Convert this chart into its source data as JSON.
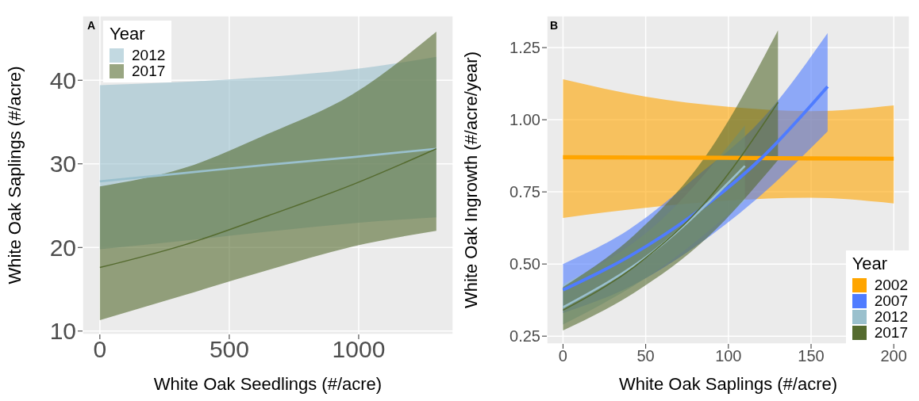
{
  "chart_data": [
    {
      "type": "line",
      "title": "A",
      "xlabel": "White Oak Seedlings (#/acre)",
      "ylabel": "White Oak Saplings (#/acre)",
      "legend_title": "Year",
      "legend": "top left",
      "grid": true,
      "xlim": [
        -67,
        1365
      ],
      "ylim": [
        9.6,
        47.7
      ],
      "xticks": [
        0,
        500,
        1000
      ],
      "yticks": [
        10,
        20,
        30,
        40
      ],
      "series": [
        {
          "name": "2012",
          "color": "#9ac0cd",
          "x": [
            0,
            325,
            650,
            975,
            1300
          ],
          "values": [
            27.9,
            28.9,
            29.9,
            30.8,
            31.8
          ],
          "lower": [
            19.8,
            20.8,
            21.9,
            22.9,
            23.6
          ],
          "upper": [
            39.4,
            39.8,
            40.4,
            41.3,
            42.8
          ]
        },
        {
          "name": "2017",
          "color": "#556b2f",
          "x": [
            0,
            325,
            650,
            975,
            1300
          ],
          "values": [
            17.6,
            20.3,
            23.8,
            27.5,
            31.8
          ],
          "lower": [
            11.3,
            14.3,
            17.3,
            20.1,
            22.0
          ],
          "upper": [
            27.3,
            29.5,
            33.6,
            38.3,
            45.8
          ]
        }
      ]
    },
    {
      "type": "line",
      "title": "B",
      "xlabel": "White Oak Saplings (#/acre)",
      "ylabel": "White Oak Ingrowth (#/acre/year)",
      "legend_title": "Year",
      "legend": "bottom right",
      "grid": true,
      "xlim": [
        -9.8,
        209.5
      ],
      "ylim": [
        0.223,
        1.36
      ],
      "xticks": [
        0,
        50,
        100,
        150,
        200
      ],
      "yticks": [
        {
          "value": 0.25,
          "label": "0.25"
        },
        {
          "value": 0.5,
          "label": "0.50"
        },
        {
          "value": 0.75,
          "label": "0.75"
        },
        {
          "value": 1,
          "label": "1.00"
        },
        {
          "value": 1.25,
          "label": "1.25"
        }
      ],
      "series": [
        {
          "name": "2002",
          "color": "#ffa500",
          "x": [
            0,
            50,
            100,
            150,
            200
          ],
          "values": [
            0.87,
            0.869,
            0.868,
            0.866,
            0.865
          ],
          "lower": [
            0.66,
            0.695,
            0.72,
            0.73,
            0.71
          ],
          "upper": [
            1.14,
            1.08,
            1.045,
            1.03,
            1.05
          ]
        },
        {
          "name": "2007",
          "color": "#4f7cff",
          "x": [
            0,
            40,
            80,
            120,
            160
          ],
          "values": [
            0.41,
            0.526,
            0.676,
            0.867,
            1.115
          ],
          "lower": [
            0.33,
            0.42,
            0.56,
            0.74,
            0.96
          ],
          "upper": [
            0.5,
            0.62,
            0.8,
            1.0,
            1.3
          ]
        },
        {
          "name": "2012",
          "color": "#9ac0cd",
          "x": [
            0,
            55,
            110
          ],
          "values": [
            0.35,
            0.545,
            0.84
          ],
          "lower": [
            0.29,
            0.47,
            0.72
          ],
          "upper": [
            0.43,
            0.63,
            0.98
          ]
        },
        {
          "name": "2017",
          "color": "#556b2f",
          "x": [
            0,
            43,
            87,
            130
          ],
          "values": [
            0.34,
            0.49,
            0.72,
            1.06
          ],
          "lower": [
            0.27,
            0.4,
            0.59,
            0.86
          ],
          "upper": [
            0.42,
            0.6,
            0.88,
            1.31
          ]
        }
      ]
    }
  ]
}
